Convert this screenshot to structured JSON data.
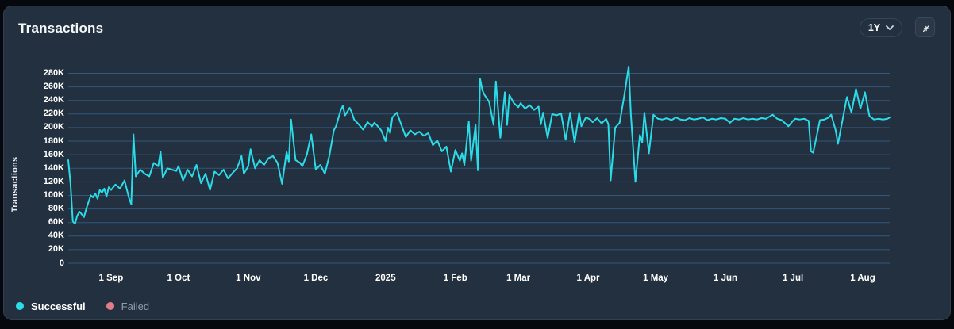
{
  "header": {
    "title": "Transactions",
    "range_selector": {
      "label": "1Y",
      "icon": "chevron-down-icon"
    },
    "collapse_button": {
      "icon": "collapse-arrows-icon"
    }
  },
  "colors": {
    "card_bg": "#22303f",
    "grid": "#3a6fa0",
    "successful": "#2adce8",
    "failed": "#e27d87",
    "axis_text": "#ffffff",
    "inactive_text": "#8e9cab"
  },
  "legend": [
    {
      "label": "Successful",
      "color": "#2adce8",
      "active": true
    },
    {
      "label": "Failed",
      "color": "#e27d87",
      "active": false
    }
  ],
  "chart_data": {
    "type": "line",
    "title": "Transactions",
    "xlabel": "",
    "ylabel": "Transactions",
    "y_unit": "K",
    "ylim": [
      0,
      280
    ],
    "grid": "horizontal",
    "legend_position": "bottom-left",
    "y_ticks": [
      {
        "label": "0",
        "value": 0
      },
      {
        "label": "20K",
        "value": 20
      },
      {
        "label": "40K",
        "value": 40
      },
      {
        "label": "60K",
        "value": 60
      },
      {
        "label": "80K",
        "value": 80
      },
      {
        "label": "100K",
        "value": 100
      },
      {
        "label": "120K",
        "value": 120
      },
      {
        "label": "140K",
        "value": 140
      },
      {
        "label": "160K",
        "value": 160
      },
      {
        "label": "180K",
        "value": 180
      },
      {
        "label": "200K",
        "value": 200
      },
      {
        "label": "220K",
        "value": 220
      },
      {
        "label": "240K",
        "value": 240
      },
      {
        "label": "260K",
        "value": 260
      },
      {
        "label": "280K",
        "value": 280
      }
    ],
    "x_domain_days": 365,
    "x_ticks": [
      {
        "label": "1 Sep",
        "day": 19
      },
      {
        "label": "1 Oct",
        "day": 49
      },
      {
        "label": "1 Nov",
        "day": 80
      },
      {
        "label": "1 Dec",
        "day": 110
      },
      {
        "label": "2025",
        "day": 141
      },
      {
        "label": "1 Feb",
        "day": 172
      },
      {
        "label": "1 Mar",
        "day": 200
      },
      {
        "label": "1 Apr",
        "day": 231
      },
      {
        "label": "1 May",
        "day": 261
      },
      {
        "label": "1 Jun",
        "day": 292
      },
      {
        "label": "1 Jul",
        "day": 322
      },
      {
        "label": "1 Aug",
        "day": 353
      }
    ],
    "series": [
      {
        "name": "Successful",
        "color": "#2adce8",
        "visible": true,
        "points": [
          [
            0,
            152
          ],
          [
            1,
            118
          ],
          [
            2,
            62
          ],
          [
            3,
            58
          ],
          [
            4,
            70
          ],
          [
            5,
            76
          ],
          [
            6,
            72
          ],
          [
            7,
            68
          ],
          [
            8,
            80
          ],
          [
            9,
            90
          ],
          [
            10,
            100
          ],
          [
            11,
            97
          ],
          [
            12,
            103
          ],
          [
            13,
            95
          ],
          [
            14,
            108
          ],
          [
            15,
            104
          ],
          [
            16,
            110
          ],
          [
            17,
            98
          ],
          [
            18,
            112
          ],
          [
            19,
            108
          ],
          [
            21,
            116
          ],
          [
            23,
            110
          ],
          [
            25,
            122
          ],
          [
            27,
            96
          ],
          [
            28,
            87
          ],
          [
            29,
            190
          ],
          [
            30,
            128
          ],
          [
            32,
            138
          ],
          [
            34,
            132
          ],
          [
            36,
            128
          ],
          [
            38,
            148
          ],
          [
            40,
            143
          ],
          [
            41,
            165
          ],
          [
            42,
            126
          ],
          [
            44,
            140
          ],
          [
            46,
            138
          ],
          [
            48,
            136
          ],
          [
            49,
            143
          ],
          [
            51,
            122
          ],
          [
            53,
            138
          ],
          [
            55,
            128
          ],
          [
            57,
            145
          ],
          [
            59,
            118
          ],
          [
            61,
            132
          ],
          [
            63,
            108
          ],
          [
            65,
            135
          ],
          [
            67,
            130
          ],
          [
            69,
            138
          ],
          [
            71,
            125
          ],
          [
            73,
            133
          ],
          [
            75,
            140
          ],
          [
            77,
            158
          ],
          [
            78,
            132
          ],
          [
            80,
            143
          ],
          [
            81,
            168
          ],
          [
            83,
            140
          ],
          [
            85,
            152
          ],
          [
            87,
            145
          ],
          [
            89,
            155
          ],
          [
            91,
            158
          ],
          [
            93,
            148
          ],
          [
            95,
            117
          ],
          [
            97,
            164
          ],
          [
            98,
            150
          ],
          [
            99,
            212
          ],
          [
            101,
            152
          ],
          [
            103,
            148
          ],
          [
            104,
            143
          ],
          [
            106,
            160
          ],
          [
            108,
            190
          ],
          [
            110,
            138
          ],
          [
            112,
            145
          ],
          [
            114,
            132
          ],
          [
            116,
            158
          ],
          [
            118,
            196
          ],
          [
            119,
            202
          ],
          [
            121,
            225
          ],
          [
            122,
            232
          ],
          [
            123,
            218
          ],
          [
            125,
            229
          ],
          [
            126,
            222
          ],
          [
            127,
            212
          ],
          [
            129,
            205
          ],
          [
            131,
            197
          ],
          [
            133,
            208
          ],
          [
            135,
            202
          ],
          [
            136,
            207
          ],
          [
            137,
            204
          ],
          [
            139,
            196
          ],
          [
            141,
            180
          ],
          [
            142,
            200
          ],
          [
            143,
            192
          ],
          [
            144,
            215
          ],
          [
            146,
            222
          ],
          [
            148,
            204
          ],
          [
            150,
            186
          ],
          [
            152,
            196
          ],
          [
            154,
            190
          ],
          [
            156,
            194
          ],
          [
            158,
            188
          ],
          [
            160,
            192
          ],
          [
            162,
            174
          ],
          [
            164,
            181
          ],
          [
            166,
            165
          ],
          [
            168,
            172
          ],
          [
            170,
            135
          ],
          [
            172,
            167
          ],
          [
            174,
            151
          ],
          [
            175,
            162
          ],
          [
            176,
            145
          ],
          [
            178,
            209
          ],
          [
            179,
            151
          ],
          [
            181,
            204
          ],
          [
            182,
            137
          ],
          [
            183,
            272
          ],
          [
            184,
            255
          ],
          [
            185,
            248
          ],
          [
            187,
            238
          ],
          [
            189,
            204
          ],
          [
            190,
            268
          ],
          [
            192,
            185
          ],
          [
            194,
            252
          ],
          [
            195,
            204
          ],
          [
            196,
            248
          ],
          [
            198,
            236
          ],
          [
            200,
            230
          ],
          [
            201,
            236
          ],
          [
            203,
            228
          ],
          [
            205,
            233
          ],
          [
            207,
            226
          ],
          [
            209,
            231
          ],
          [
            210,
            205
          ],
          [
            211,
            222
          ],
          [
            213,
            185
          ],
          [
            215,
            220
          ],
          [
            217,
            218
          ],
          [
            219,
            221
          ],
          [
            221,
            182
          ],
          [
            223,
            222
          ],
          [
            225,
            178
          ],
          [
            227,
            222
          ],
          [
            228,
            202
          ],
          [
            230,
            215
          ],
          [
            232,
            212
          ],
          [
            233,
            208
          ],
          [
            235,
            214
          ],
          [
            237,
            206
          ],
          [
            239,
            213
          ],
          [
            240,
            205
          ],
          [
            241,
            122
          ],
          [
            243,
            200
          ],
          [
            245,
            207
          ],
          [
            247,
            246
          ],
          [
            249,
            290
          ],
          [
            250,
            219
          ],
          [
            252,
            120
          ],
          [
            254,
            189
          ],
          [
            255,
            178
          ],
          [
            256,
            222
          ],
          [
            258,
            162
          ],
          [
            260,
            219
          ],
          [
            262,
            213
          ],
          [
            264,
            212
          ],
          [
            266,
            214
          ],
          [
            268,
            211
          ],
          [
            270,
            215
          ],
          [
            272,
            212
          ],
          [
            274,
            211
          ],
          [
            276,
            214
          ],
          [
            278,
            212
          ],
          [
            280,
            213
          ],
          [
            282,
            215
          ],
          [
            284,
            211
          ],
          [
            286,
            213
          ],
          [
            288,
            212
          ],
          [
            290,
            214
          ],
          [
            292,
            213
          ],
          [
            294,
            207
          ],
          [
            296,
            213
          ],
          [
            298,
            212
          ],
          [
            300,
            214
          ],
          [
            302,
            212
          ],
          [
            304,
            213
          ],
          [
            306,
            212
          ],
          [
            308,
            214
          ],
          [
            310,
            213
          ],
          [
            313,
            219
          ],
          [
            315,
            213
          ],
          [
            317,
            211
          ],
          [
            319,
            205
          ],
          [
            320,
            202
          ],
          [
            322,
            210
          ],
          [
            323,
            213
          ],
          [
            325,
            212
          ],
          [
            327,
            213
          ],
          [
            329,
            210
          ],
          [
            330,
            165
          ],
          [
            331,
            163
          ],
          [
            333,
            195
          ],
          [
            334,
            211
          ],
          [
            336,
            212
          ],
          [
            338,
            215
          ],
          [
            339,
            219
          ],
          [
            341,
            196
          ],
          [
            342,
            176
          ],
          [
            344,
            211
          ],
          [
            346,
            245
          ],
          [
            348,
            222
          ],
          [
            350,
            257
          ],
          [
            352,
            228
          ],
          [
            354,
            252
          ],
          [
            356,
            217
          ],
          [
            358,
            212
          ],
          [
            360,
            213
          ],
          [
            362,
            212
          ],
          [
            364,
            213
          ],
          [
            365,
            215
          ]
        ]
      },
      {
        "name": "Failed",
        "color": "#e27d87",
        "visible": false,
        "points": []
      }
    ]
  }
}
